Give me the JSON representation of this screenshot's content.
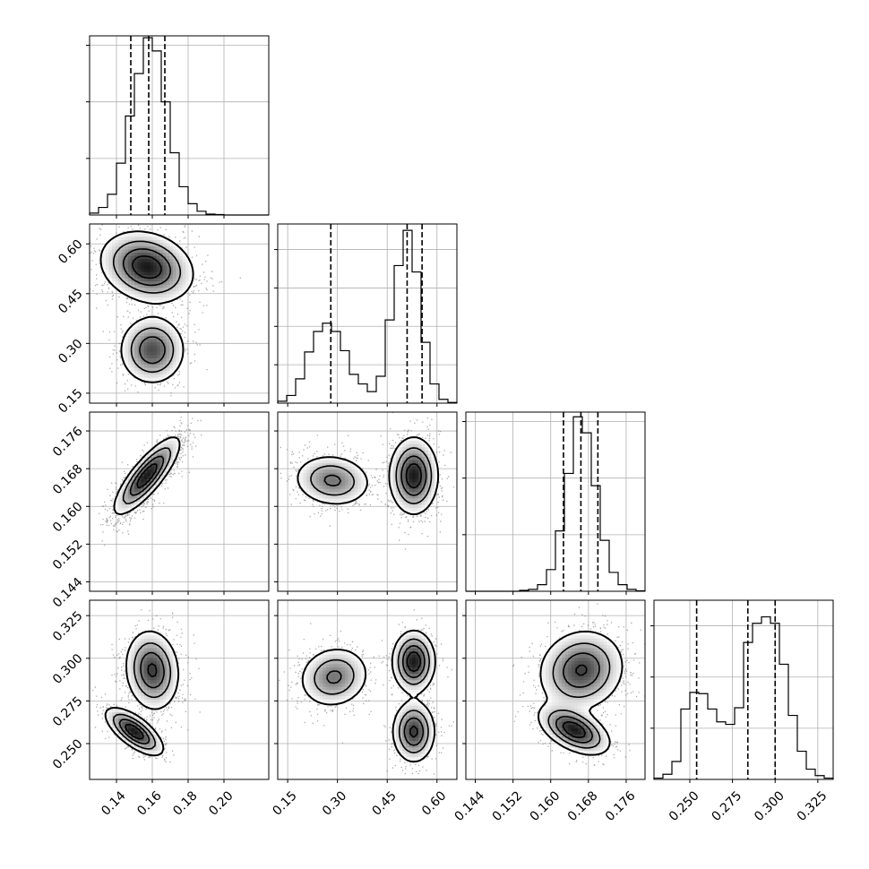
{
  "chart_data": {
    "type": "corner",
    "grid": true,
    "n_params": 4,
    "parameters": [
      {
        "index": 0,
        "range": [
          0.125,
          0.225
        ],
        "ticks": [
          0.14,
          0.16,
          0.18,
          0.2
        ],
        "tick_labels": [
          "0.14",
          "0.16",
          "0.18",
          "0.20"
        ],
        "quantiles": [
          0.148,
          0.158,
          0.167
        ]
      },
      {
        "index": 1,
        "range": [
          0.12,
          0.66
        ],
        "ticks": [
          0.15,
          0.3,
          0.45,
          0.6
        ],
        "tick_labels": [
          "0.15",
          "0.30",
          "0.45",
          "0.60"
        ],
        "quantiles": [
          0.28,
          0.51,
          0.555
        ]
      },
      {
        "index": 2,
        "range": [
          0.142,
          0.18
        ],
        "ticks": [
          0.144,
          0.152,
          0.16,
          0.168,
          0.176
        ],
        "tick_labels": [
          "0.144",
          "0.152",
          "0.160",
          "0.168",
          "0.176"
        ],
        "quantiles": [
          0.1627,
          0.1664,
          0.17
        ]
      },
      {
        "index": 3,
        "range": [
          0.229,
          0.334
        ],
        "ticks": [
          0.25,
          0.275,
          0.3,
          0.325
        ],
        "tick_labels": [
          "0.250",
          "0.275",
          "0.300",
          "0.325"
        ],
        "quantiles": [
          0.254,
          0.284,
          0.3
        ]
      }
    ],
    "histograms": [
      {
        "param": 0,
        "bin_edges": [
          0.125,
          0.13,
          0.135,
          0.14,
          0.145,
          0.15,
          0.155,
          0.16,
          0.165,
          0.17,
          0.175,
          0.18,
          0.185,
          0.19,
          0.195,
          0.2,
          0.205,
          0.21,
          0.215,
          0.22,
          0.225
        ],
        "counts": [
          2,
          8,
          22,
          55,
          105,
          150,
          188,
          174,
          120,
          66,
          30,
          12,
          4,
          1,
          0.5,
          0,
          0,
          0,
          0,
          0
        ],
        "ylim": [
          0,
          190
        ],
        "y_ticks": [
          60,
          120,
          180
        ]
      },
      {
        "param": 1,
        "bin_edges": [
          0.12,
          0.147,
          0.174,
          0.201,
          0.228,
          0.255,
          0.282,
          0.309,
          0.336,
          0.363,
          0.39,
          0.417,
          0.444,
          0.471,
          0.498,
          0.525,
          0.552,
          0.579,
          0.606,
          0.633,
          0.66
        ],
        "counts": [
          3,
          12,
          38,
          80,
          112,
          125,
          112,
          82,
          45,
          30,
          18,
          42,
          130,
          215,
          270,
          205,
          95,
          30,
          6,
          1
        ],
        "ylim": [
          0,
          280
        ],
        "y_ticks": [
          60,
          120,
          180,
          240
        ]
      },
      {
        "param": 2,
        "bin_edges": [
          0.142,
          0.1439,
          0.1458,
          0.1477,
          0.1496,
          0.1515,
          0.1534,
          0.1553,
          0.1572,
          0.1591,
          0.161,
          0.1629,
          0.1648,
          0.1667,
          0.1686,
          0.1705,
          0.1724,
          0.1743,
          0.1762,
          0.1781,
          0.18
        ],
        "counts": [
          0,
          0,
          0,
          0,
          0,
          0,
          1,
          2,
          7,
          23,
          64,
          125,
          185,
          168,
          112,
          54,
          20,
          7,
          2,
          0.5
        ],
        "ylim": [
          0,
          190
        ],
        "y_ticks": [
          60,
          120,
          180
        ]
      },
      {
        "param": 3,
        "bin_edges": [
          0.229,
          0.23425,
          0.2395,
          0.24475,
          0.25,
          0.25525,
          0.2605,
          0.26575,
          0.271,
          0.27625,
          0.2815,
          0.28675,
          0.292,
          0.29725,
          0.3025,
          0.30775,
          0.313,
          0.31825,
          0.3235,
          0.32875,
          0.334
        ],
        "counts": [
          1,
          4,
          14,
          55,
          68,
          67,
          55,
          45,
          43,
          56,
          107,
          122,
          127,
          122,
          90,
          50,
          22,
          8,
          3,
          1
        ],
        "ylim": [
          0,
          140
        ],
        "y_ticks": [
          40,
          80,
          120
        ]
      }
    ],
    "joint_blobs": [
      {
        "x": 0,
        "y": 1,
        "modes": [
          {
            "mx": 0.157,
            "my": 0.53,
            "sx": 0.012,
            "sy": 0.05,
            "rho": -0.2,
            "weight": 0.65
          },
          {
            "mx": 0.16,
            "my": 0.28,
            "sx": 0.0085,
            "sy": 0.048,
            "rho": 0.0,
            "weight": 0.35
          }
        ]
      },
      {
        "x": 0,
        "y": 2,
        "modes": [
          {
            "mx": 0.157,
            "my": 0.1665,
            "sx": 0.0085,
            "sy": 0.0038,
            "rho": 0.82,
            "weight": 1.0
          }
        ]
      },
      {
        "x": 1,
        "y": 2,
        "modes": [
          {
            "mx": 0.285,
            "my": 0.1655,
            "sx": 0.055,
            "sy": 0.0026,
            "rho": -0.1,
            "weight": 0.4
          },
          {
            "mx": 0.53,
            "my": 0.1665,
            "sx": 0.034,
            "sy": 0.0038,
            "rho": 0.0,
            "weight": 0.6
          }
        ]
      },
      {
        "x": 0,
        "y": 3,
        "modes": [
          {
            "mx": 0.16,
            "my": 0.293,
            "sx": 0.007,
            "sy": 0.011,
            "rho": -0.1,
            "weight": 0.65
          },
          {
            "mx": 0.15,
            "my": 0.257,
            "sx": 0.0075,
            "sy": 0.0065,
            "rho": -0.7,
            "weight": 0.35
          }
        ]
      },
      {
        "x": 1,
        "y": 3,
        "modes": [
          {
            "mx": 0.29,
            "my": 0.289,
            "sx": 0.05,
            "sy": 0.0085,
            "rho": 0.1,
            "weight": 0.35
          },
          {
            "mx": 0.53,
            "my": 0.298,
            "sx": 0.03,
            "sy": 0.0085,
            "rho": 0.0,
            "weight": 0.35
          },
          {
            "mx": 0.53,
            "my": 0.257,
            "sx": 0.03,
            "sy": 0.0085,
            "rho": 0.0,
            "weight": 0.3
          }
        ]
      },
      {
        "x": 2,
        "y": 3,
        "modes": [
          {
            "mx": 0.1665,
            "my": 0.293,
            "sx": 0.0042,
            "sy": 0.011,
            "rho": 0.1,
            "weight": 0.65
          },
          {
            "mx": 0.165,
            "my": 0.258,
            "sx": 0.0035,
            "sy": 0.0068,
            "rho": -0.5,
            "weight": 0.35
          }
        ]
      }
    ]
  }
}
